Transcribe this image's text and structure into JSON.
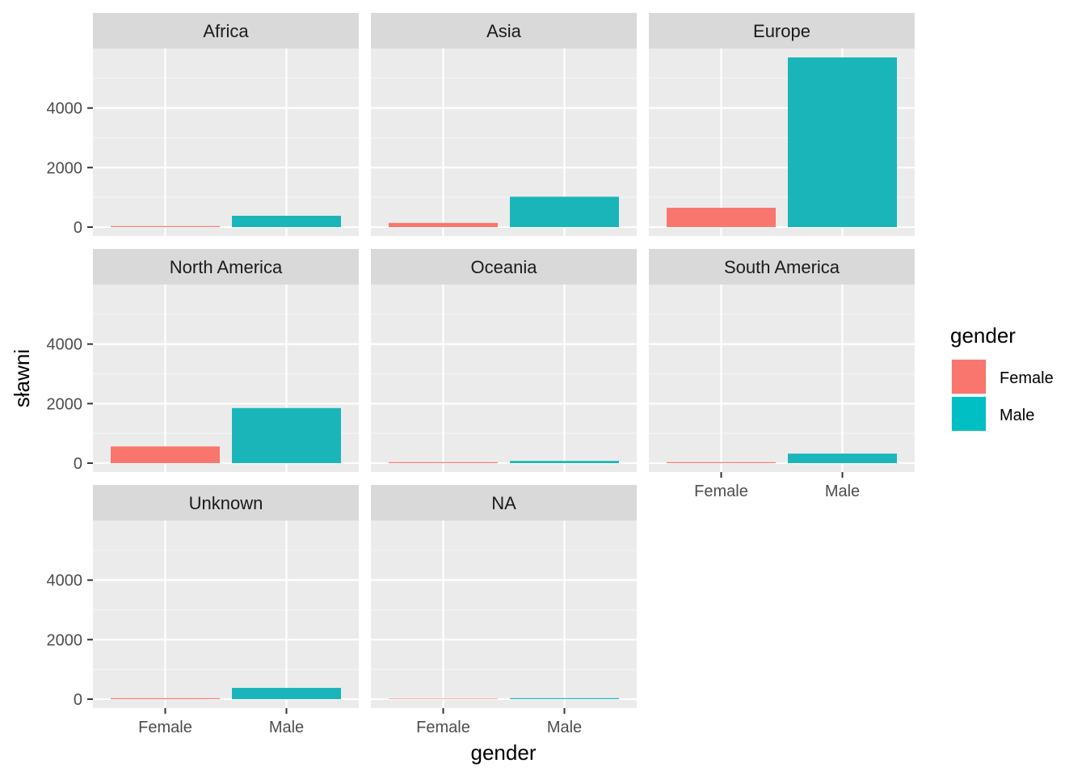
{
  "chart_data": {
    "type": "bar",
    "facet_by": "continent",
    "xlabel": "gender",
    "ylabel": "sławni",
    "categories": [
      "Female",
      "Male"
    ],
    "ylim": [
      0,
      5700
    ],
    "yticks": [
      0,
      2000,
      4000
    ],
    "ytick_labels": [
      "0",
      "2000",
      "4000"
    ],
    "grid": true,
    "legend": {
      "title": "gender",
      "position": "right",
      "entries": [
        {
          "label": "Female",
          "color": "#F8766D"
        },
        {
          "label": "Male",
          "color": "#00BFC4"
        }
      ]
    },
    "colors": {
      "Female": "#F8766D",
      "Male": "#1AB5B8"
    },
    "facets": [
      {
        "label": "Africa",
        "values": [
          25,
          380
        ]
      },
      {
        "label": "Asia",
        "values": [
          140,
          1020
        ]
      },
      {
        "label": "Europe",
        "values": [
          650,
          5700
        ]
      },
      {
        "label": "North America",
        "values": [
          560,
          1850
        ]
      },
      {
        "label": "Oceania",
        "values": [
          15,
          75
        ]
      },
      {
        "label": "South America",
        "values": [
          20,
          320
        ]
      },
      {
        "label": "Unknown",
        "values": [
          15,
          380
        ]
      },
      {
        "label": "NA",
        "values": [
          0,
          30
        ]
      }
    ]
  }
}
